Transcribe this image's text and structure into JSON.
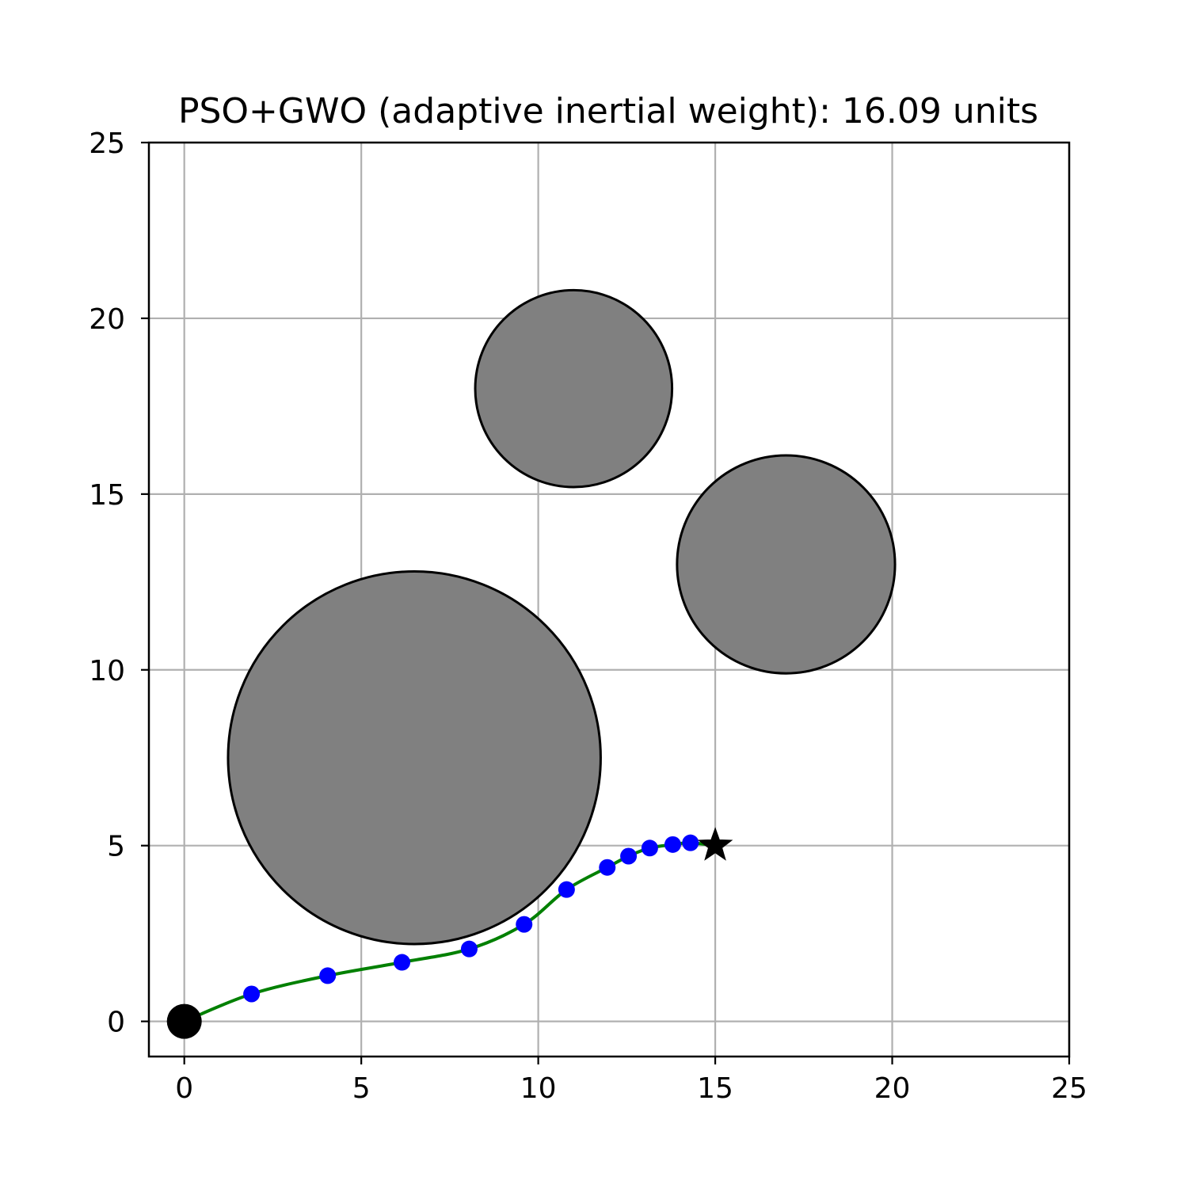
{
  "chart_data": {
    "type": "scatter",
    "title": "PSO+GWO (adaptive inertial weight): 16.09 units",
    "xlabel": "",
    "ylabel": "",
    "xlim": [
      -1,
      25
    ],
    "ylim": [
      -1,
      25
    ],
    "xticks": [
      0,
      5,
      10,
      15,
      20,
      25
    ],
    "yticks": [
      0,
      5,
      10,
      15,
      20,
      25
    ],
    "grid": true,
    "obstacles": [
      {
        "cx": 6.5,
        "cy": 7.5,
        "r": 5.3
      },
      {
        "cx": 11.0,
        "cy": 18.0,
        "r": 2.8
      },
      {
        "cx": 17.0,
        "cy": 13.0,
        "r": 3.1
      }
    ],
    "start": {
      "x": 0,
      "y": 0
    },
    "goal": {
      "x": 15,
      "y": 5
    },
    "waypoints": [
      {
        "x": 1.9,
        "y": 0.78
      },
      {
        "x": 4.05,
        "y": 1.3
      },
      {
        "x": 6.15,
        "y": 1.68
      },
      {
        "x": 8.05,
        "y": 2.06
      },
      {
        "x": 9.6,
        "y": 2.76
      },
      {
        "x": 10.8,
        "y": 3.75
      },
      {
        "x": 11.95,
        "y": 4.38
      },
      {
        "x": 12.55,
        "y": 4.7
      },
      {
        "x": 13.15,
        "y": 4.93
      },
      {
        "x": 13.8,
        "y": 5.03
      },
      {
        "x": 14.3,
        "y": 5.08
      }
    ],
    "colors": {
      "obstacle_fill": "#808080",
      "obstacle_edge": "#000000",
      "path": "#008000",
      "waypoint": "#0000ff",
      "start": "#000000",
      "goal": "#000000",
      "grid": "#b0b0b0"
    }
  }
}
